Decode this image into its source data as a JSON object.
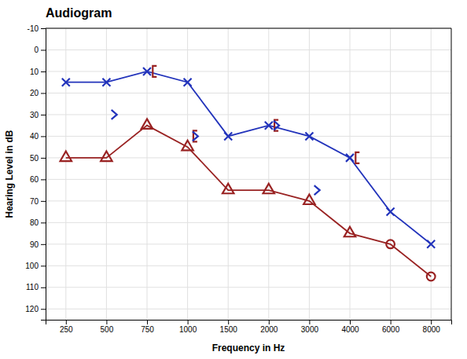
{
  "chart_data": {
    "type": "line",
    "title": "Audiogram",
    "xlabel": "Frequency in Hz",
    "ylabel": "Hearing Level in dB",
    "categories": [
      "250",
      "500",
      "750",
      "1000",
      "1500",
      "2000",
      "3000",
      "4000",
      "6000",
      "8000"
    ],
    "series": [
      {
        "color": "#2233bb",
        "marker": "x",
        "line_style": "solid",
        "values": [
          15,
          15,
          10,
          15,
          40,
          35,
          40,
          50,
          75,
          90
        ]
      },
      {
        "color": "#992222",
        "marker": "none",
        "line_style": "solid",
        "values": [
          50,
          50,
          35,
          45,
          65,
          65,
          70,
          85,
          90,
          105
        ]
      },
      {
        "color": "#992222",
        "marker": "triangle",
        "line_style": "none",
        "values": [
          50,
          50,
          35,
          45,
          65,
          65,
          70,
          85,
          null,
          null
        ]
      },
      {
        "color": "#992222",
        "marker": "circle",
        "line_style": "none",
        "values": [
          null,
          null,
          null,
          null,
          null,
          null,
          null,
          null,
          90,
          105
        ]
      },
      {
        "color": "#992222",
        "marker": "bracket",
        "line_style": "none",
        "values": [
          null,
          null,
          10,
          40,
          null,
          35,
          null,
          50,
          null,
          null
        ]
      },
      {
        "color": "#2233bb",
        "marker": "chevron",
        "line_style": "none",
        "values": [
          null,
          30,
          null,
          40,
          null,
          35,
          65,
          null,
          null,
          null
        ]
      }
    ],
    "ylim": [
      125,
      -10
    ],
    "yticks": [
      -10,
      0,
      10,
      20,
      30,
      40,
      50,
      60,
      70,
      80,
      90,
      100,
      110,
      120
    ],
    "grid": true
  }
}
